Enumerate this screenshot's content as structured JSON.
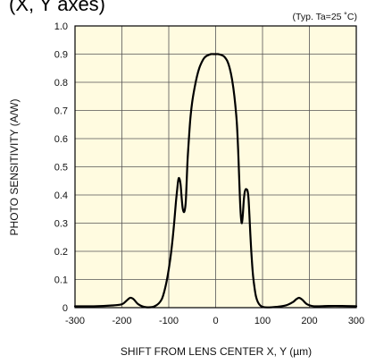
{
  "chart_data": {
    "type": "line",
    "title": "(X, Y axes)",
    "note": "(Typ. Ta=25 ˚C)",
    "xlabel": "SHIFT FROM LENS CENTER X, Y (µm)",
    "ylabel": "PHOTO SENSITIVITY (A/W)",
    "xlim": [
      -300,
      300
    ],
    "ylim": [
      0,
      1.0
    ],
    "xticks": [
      -300,
      -200,
      -100,
      0,
      100,
      200,
      300
    ],
    "yticks": [
      0,
      0.1,
      0.2,
      0.3,
      0.4,
      0.5,
      0.6,
      0.7,
      0.8,
      0.9,
      1.0
    ],
    "xtick_labels": [
      "-300",
      "-200",
      "-100",
      "0",
      "100",
      "200",
      "300"
    ],
    "ytick_labels": [
      "0",
      "0.1",
      "0.2",
      "0.3",
      "0.4",
      "0.5",
      "0.6",
      "0.7",
      "0.8",
      "0.9",
      "1.0"
    ],
    "grid": true,
    "background_color": "#fffbe0",
    "series": [
      {
        "color": "#000000",
        "x": [
          -300,
          -260,
          -220,
          -200,
          -190,
          -182,
          -175,
          -165,
          -150,
          -130,
          -115,
          -105,
          -97,
          -92,
          -88,
          -85,
          -82,
          -80,
          -78,
          -75,
          -72,
          -70,
          -67,
          -64,
          -62,
          -60,
          -57,
          -54,
          -50,
          -45,
          -40,
          -35,
          -30,
          -25,
          -20,
          -15,
          -10,
          -5,
          0,
          5,
          10,
          15,
          20,
          25,
          30,
          35,
          40,
          45,
          48,
          50,
          52,
          54,
          56,
          58,
          60,
          62,
          64,
          66,
          68,
          70,
          72,
          74,
          76,
          78,
          80,
          83,
          86,
          90,
          95,
          100,
          110,
          130,
          150,
          165,
          172,
          178,
          185,
          195,
          210,
          240,
          270,
          300
        ],
        "y": [
          0.005,
          0.005,
          0.008,
          0.012,
          0.025,
          0.035,
          0.03,
          0.012,
          0.002,
          0.005,
          0.03,
          0.09,
          0.17,
          0.24,
          0.31,
          0.37,
          0.42,
          0.45,
          0.46,
          0.44,
          0.38,
          0.35,
          0.34,
          0.37,
          0.44,
          0.52,
          0.6,
          0.67,
          0.73,
          0.78,
          0.82,
          0.85,
          0.87,
          0.885,
          0.893,
          0.897,
          0.9,
          0.9,
          0.9,
          0.9,
          0.898,
          0.895,
          0.888,
          0.875,
          0.85,
          0.81,
          0.75,
          0.66,
          0.56,
          0.47,
          0.38,
          0.32,
          0.3,
          0.33,
          0.38,
          0.41,
          0.42,
          0.42,
          0.415,
          0.39,
          0.33,
          0.26,
          0.2,
          0.15,
          0.11,
          0.07,
          0.04,
          0.02,
          0.008,
          0.003,
          0.001,
          0.003,
          0.008,
          0.02,
          0.03,
          0.035,
          0.028,
          0.012,
          0.005,
          0.006,
          0.006,
          0.005
        ]
      }
    ]
  }
}
